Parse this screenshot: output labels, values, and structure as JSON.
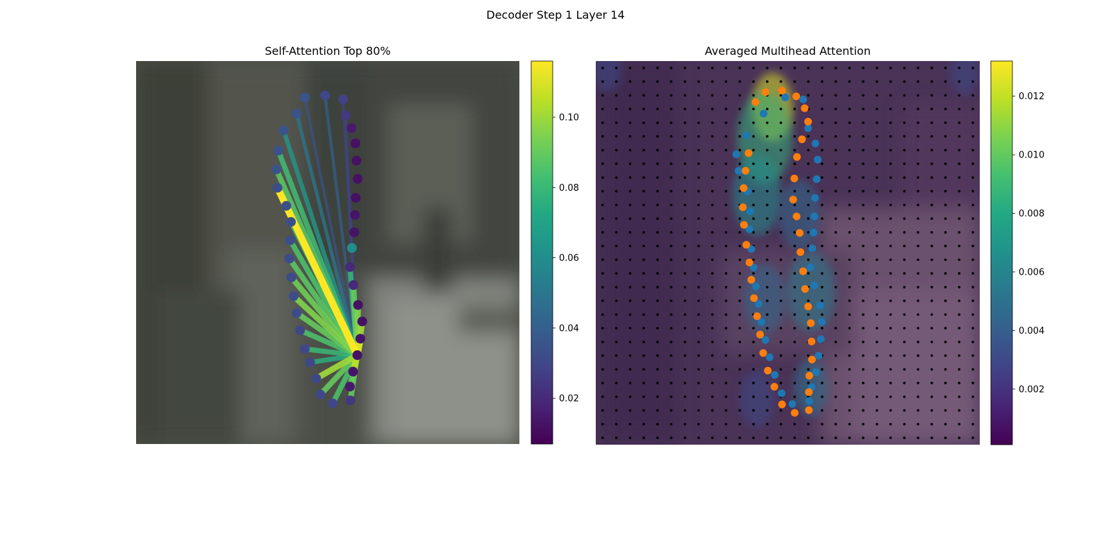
{
  "figure": {
    "suptitle": "Decoder Step 1 Layer 14"
  },
  "chart_data": [
    {
      "type": "scatter",
      "title": "Self-Attention Top 80%",
      "background": "blurred photo (image crop)",
      "colormap": "viridis",
      "colorbar": {
        "ticks": [
          0.02,
          0.04,
          0.06,
          0.08,
          0.1
        ],
        "tick_labels": [
          "0.02",
          "0.04",
          "0.06",
          "0.08",
          "0.10"
        ],
        "range": [
          0.007,
          0.116
        ]
      },
      "query_index": 17,
      "points": [
        {
          "x": 0.44,
          "y": 0.095,
          "v": 0.035
        },
        {
          "x": 0.493,
          "y": 0.09,
          "v": 0.03
        },
        {
          "x": 0.54,
          "y": 0.1,
          "v": 0.028
        },
        {
          "x": 0.547,
          "y": 0.142,
          "v": 0.025
        },
        {
          "x": 0.562,
          "y": 0.175,
          "v": 0.015
        },
        {
          "x": 0.572,
          "y": 0.215,
          "v": 0.012
        },
        {
          "x": 0.575,
          "y": 0.26,
          "v": 0.012
        },
        {
          "x": 0.578,
          "y": 0.308,
          "v": 0.012
        },
        {
          "x": 0.573,
          "y": 0.357,
          "v": 0.012
        },
        {
          "x": 0.571,
          "y": 0.402,
          "v": 0.013
        },
        {
          "x": 0.569,
          "y": 0.447,
          "v": 0.013
        },
        {
          "x": 0.563,
          "y": 0.488,
          "v": 0.06
        },
        {
          "x": 0.558,
          "y": 0.538,
          "v": 0.02
        },
        {
          "x": 0.567,
          "y": 0.585,
          "v": 0.02
        },
        {
          "x": 0.579,
          "y": 0.637,
          "v": 0.012
        },
        {
          "x": 0.59,
          "y": 0.68,
          "v": 0.012
        },
        {
          "x": 0.585,
          "y": 0.725,
          "v": 0.013
        },
        {
          "x": 0.577,
          "y": 0.768,
          "v": 0.012
        },
        {
          "x": 0.566,
          "y": 0.811,
          "v": 0.013
        },
        {
          "x": 0.558,
          "y": 0.85,
          "v": 0.015
        },
        {
          "x": 0.559,
          "y": 0.886,
          "v": 0.025
        },
        {
          "x": 0.513,
          "y": 0.894,
          "v": 0.03
        },
        {
          "x": 0.481,
          "y": 0.871,
          "v": 0.03
        },
        {
          "x": 0.47,
          "y": 0.829,
          "v": 0.03
        },
        {
          "x": 0.454,
          "y": 0.787,
          "v": 0.03
        },
        {
          "x": 0.44,
          "y": 0.752,
          "v": 0.03
        },
        {
          "x": 0.428,
          "y": 0.703,
          "v": 0.03
        },
        {
          "x": 0.419,
          "y": 0.658,
          "v": 0.032
        },
        {
          "x": 0.411,
          "y": 0.614,
          "v": 0.032
        },
        {
          "x": 0.405,
          "y": 0.565,
          "v": 0.032
        },
        {
          "x": 0.4,
          "y": 0.516,
          "v": 0.032
        },
        {
          "x": 0.402,
          "y": 0.468,
          "v": 0.033
        },
        {
          "x": 0.404,
          "y": 0.42,
          "v": 0.033
        },
        {
          "x": 0.392,
          "y": 0.378,
          "v": 0.033
        },
        {
          "x": 0.369,
          "y": 0.331,
          "v": 0.033
        },
        {
          "x": 0.366,
          "y": 0.283,
          "v": 0.035
        },
        {
          "x": 0.371,
          "y": 0.234,
          "v": 0.035
        },
        {
          "x": 0.385,
          "y": 0.181,
          "v": 0.035
        },
        {
          "x": 0.419,
          "y": 0.137,
          "v": 0.035
        }
      ],
      "edges": [
        {
          "to": 0,
          "w": 0.035
        },
        {
          "to": 1,
          "w": 0.04
        },
        {
          "to": 2,
          "w": 0.03
        },
        {
          "to": 3,
          "w": 0.028
        },
        {
          "to": 12,
          "w": 0.08
        },
        {
          "to": 13,
          "w": 0.09
        },
        {
          "to": 14,
          "w": 0.095
        },
        {
          "to": 15,
          "w": 0.1
        },
        {
          "to": 16,
          "w": 0.11
        },
        {
          "to": 17,
          "w": 0.105
        },
        {
          "to": 18,
          "w": 0.105
        },
        {
          "to": 19,
          "w": 0.09
        },
        {
          "to": 20,
          "w": 0.09
        },
        {
          "to": 21,
          "w": 0.085
        },
        {
          "to": 22,
          "w": 0.09
        },
        {
          "to": 23,
          "w": 0.1
        },
        {
          "to": 24,
          "w": 0.075
        },
        {
          "to": 25,
          "w": 0.08
        },
        {
          "to": 26,
          "w": 0.085
        },
        {
          "to": 27,
          "w": 0.09
        },
        {
          "to": 28,
          "w": 0.095
        },
        {
          "to": 29,
          "w": 0.092
        },
        {
          "to": 30,
          "w": 0.088
        },
        {
          "to": 31,
          "w": 0.085
        },
        {
          "to": 32,
          "w": 0.08
        },
        {
          "to": 33,
          "w": 0.09
        },
        {
          "to": 34,
          "w": 0.116
        },
        {
          "to": 35,
          "w": 0.088
        },
        {
          "to": 36,
          "w": 0.082
        },
        {
          "to": 37,
          "w": 0.065
        },
        {
          "to": 38,
          "w": 0.05
        }
      ]
    },
    {
      "type": "heatmap",
      "title": "Averaged Multihead Attention",
      "colormap": "viridis",
      "colorbar": {
        "ticks": [
          0.002,
          0.004,
          0.006,
          0.008,
          0.01,
          0.012
        ],
        "tick_labels": [
          "0.002",
          "0.004",
          "0.006",
          "0.008",
          "0.010",
          "0.012"
        ],
        "range": [
          0.0001,
          0.0132
        ]
      },
      "grid": {
        "rows": 28,
        "cols": 28
      },
      "heat_blobs": [
        {
          "x": 0.46,
          "y": 0.12,
          "r": 0.06,
          "v": 0.0125
        },
        {
          "x": 0.44,
          "y": 0.2,
          "r": 0.08,
          "v": 0.0085
        },
        {
          "x": 0.42,
          "y": 0.35,
          "r": 0.07,
          "v": 0.0065
        },
        {
          "x": 0.53,
          "y": 0.4,
          "r": 0.06,
          "v": 0.0045
        },
        {
          "x": 0.56,
          "y": 0.6,
          "r": 0.07,
          "v": 0.0055
        },
        {
          "x": 0.44,
          "y": 0.62,
          "r": 0.06,
          "v": 0.0045
        },
        {
          "x": 0.56,
          "y": 0.85,
          "r": 0.05,
          "v": 0.005
        },
        {
          "x": 0.42,
          "y": 0.88,
          "r": 0.05,
          "v": 0.003
        },
        {
          "x": 0.03,
          "y": 0.02,
          "r": 0.04,
          "v": 0.003
        },
        {
          "x": 0.96,
          "y": 0.03,
          "r": 0.04,
          "v": 0.003
        }
      ],
      "series": [
        {
          "name": "",
          "color": "#1f77b4",
          "points": [
            {
              "x": 0.493,
              "y": 0.095
            },
            {
              "x": 0.54,
              "y": 0.1
            },
            {
              "x": 0.553,
              "y": 0.175
            },
            {
              "x": 0.572,
              "y": 0.215
            },
            {
              "x": 0.578,
              "y": 0.257
            },
            {
              "x": 0.575,
              "y": 0.308
            },
            {
              "x": 0.571,
              "y": 0.357
            },
            {
              "x": 0.569,
              "y": 0.405
            },
            {
              "x": 0.567,
              "y": 0.447
            },
            {
              "x": 0.564,
              "y": 0.488
            },
            {
              "x": 0.559,
              "y": 0.538
            },
            {
              "x": 0.569,
              "y": 0.585
            },
            {
              "x": 0.584,
              "y": 0.637
            },
            {
              "x": 0.589,
              "y": 0.68
            },
            {
              "x": 0.586,
              "y": 0.725
            },
            {
              "x": 0.58,
              "y": 0.768
            },
            {
              "x": 0.573,
              "y": 0.811
            },
            {
              "x": 0.562,
              "y": 0.85
            },
            {
              "x": 0.556,
              "y": 0.886
            },
            {
              "x": 0.512,
              "y": 0.894
            },
            {
              "x": 0.437,
              "y": 0.137
            },
            {
              "x": 0.392,
              "y": 0.194
            },
            {
              "x": 0.366,
              "y": 0.243
            },
            {
              "x": 0.372,
              "y": 0.286
            },
            {
              "x": 0.395,
              "y": 0.34
            },
            {
              "x": 0.402,
              "y": 0.392
            },
            {
              "x": 0.4,
              "y": 0.438
            },
            {
              "x": 0.405,
              "y": 0.49
            },
            {
              "x": 0.411,
              "y": 0.538
            },
            {
              "x": 0.417,
              "y": 0.587
            },
            {
              "x": 0.424,
              "y": 0.633
            },
            {
              "x": 0.431,
              "y": 0.68
            },
            {
              "x": 0.442,
              "y": 0.727
            },
            {
              "x": 0.453,
              "y": 0.772
            },
            {
              "x": 0.466,
              "y": 0.818
            },
            {
              "x": 0.484,
              "y": 0.866
            }
          ]
        },
        {
          "name": "",
          "color": "#ff7f0e",
          "points": [
            {
              "x": 0.416,
              "y": 0.107
            },
            {
              "x": 0.442,
              "y": 0.081
            },
            {
              "x": 0.485,
              "y": 0.077
            },
            {
              "x": 0.522,
              "y": 0.092
            },
            {
              "x": 0.544,
              "y": 0.123
            },
            {
              "x": 0.553,
              "y": 0.158
            },
            {
              "x": 0.537,
              "y": 0.204
            },
            {
              "x": 0.524,
              "y": 0.25
            },
            {
              "x": 0.517,
              "y": 0.306
            },
            {
              "x": 0.514,
              "y": 0.361
            },
            {
              "x": 0.523,
              "y": 0.405
            },
            {
              "x": 0.531,
              "y": 0.448
            },
            {
              "x": 0.533,
              "y": 0.498
            },
            {
              "x": 0.54,
              "y": 0.548
            },
            {
              "x": 0.545,
              "y": 0.594
            },
            {
              "x": 0.553,
              "y": 0.64
            },
            {
              "x": 0.56,
              "y": 0.683
            },
            {
              "x": 0.562,
              "y": 0.731
            },
            {
              "x": 0.563,
              "y": 0.778
            },
            {
              "x": 0.556,
              "y": 0.82
            },
            {
              "x": 0.555,
              "y": 0.863
            },
            {
              "x": 0.555,
              "y": 0.91
            },
            {
              "x": 0.518,
              "y": 0.917
            },
            {
              "x": 0.485,
              "y": 0.895
            },
            {
              "x": 0.465,
              "y": 0.849
            },
            {
              "x": 0.448,
              "y": 0.807
            },
            {
              "x": 0.436,
              "y": 0.761
            },
            {
              "x": 0.428,
              "y": 0.713
            },
            {
              "x": 0.42,
              "y": 0.665
            },
            {
              "x": 0.412,
              "y": 0.618
            },
            {
              "x": 0.405,
              "y": 0.57
            },
            {
              "x": 0.4,
              "y": 0.525
            },
            {
              "x": 0.392,
              "y": 0.479
            },
            {
              "x": 0.386,
              "y": 0.427
            },
            {
              "x": 0.383,
              "y": 0.381
            },
            {
              "x": 0.385,
              "y": 0.331
            },
            {
              "x": 0.39,
              "y": 0.286
            },
            {
              "x": 0.398,
              "y": 0.24
            }
          ]
        }
      ]
    }
  ]
}
